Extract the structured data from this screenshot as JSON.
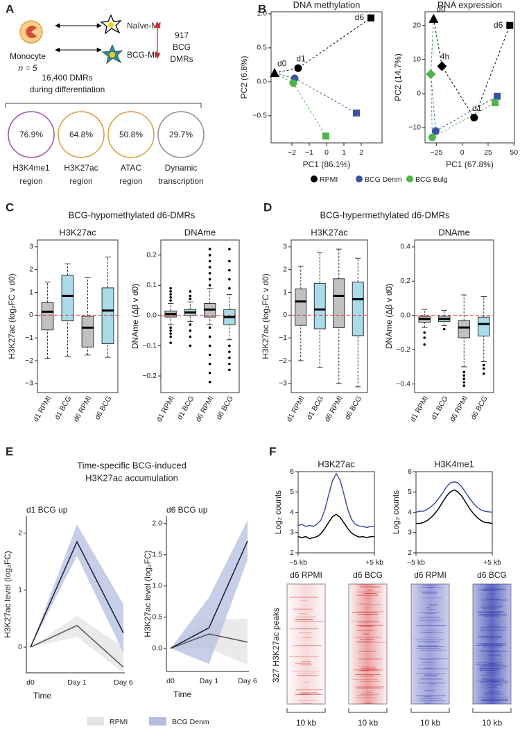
{
  "panel_labels": [
    "A",
    "B",
    "C",
    "D",
    "E",
    "F"
  ],
  "panel_a": {
    "monocyte": "Monocyte",
    "n": "n = 5",
    "naive": "Naïve-Mf",
    "bcg": "BCG-Mf",
    "bcg_dmrs": [
      "917",
      "BCG",
      "DMRs"
    ],
    "diff_dmrs": [
      "16,400 DMRs",
      "during differentiation"
    ],
    "overlaps": [
      {
        "value": "76.9%",
        "label": [
          "H3K4me1",
          "region"
        ],
        "color": "#a04fb0"
      },
      {
        "value": "64.8%",
        "label": [
          "H3K27ac",
          "region"
        ],
        "color": "#e09a3a"
      },
      {
        "value": "50.8%",
        "label": [
          "ATAC",
          "region"
        ],
        "color": "#e09a3a"
      },
      {
        "value": "29.7%",
        "label": [
          "Dynamic",
          "transcription"
        ],
        "color": "#8c8c8c"
      }
    ]
  },
  "panel_c": {
    "title": "BCG-hypomethylated d6-DMRs"
  },
  "panel_d": {
    "title": "BCG-hypermethylated d6-DMRs"
  },
  "panel_e": {
    "title": [
      "Time-specific BCG-induced",
      "H3K27ac accumulation"
    ]
  },
  "panel_f": {
    "heatmap_labels": [
      "d6 RPMI",
      "d6 BCG"
    ],
    "scale": "10 kb",
    "row_label": "327 H3K27ac peaks"
  },
  "chart_data": [
    {
      "type": "scatter",
      "title": "DNA methylation",
      "xlabel": "PC1 (86.1%)",
      "ylabel": "PC2 (6.8%)",
      "xlim": [
        -3.2,
        3.2
      ],
      "ylim": [
        -0.9,
        1.03
      ],
      "xticks": [
        {
          "value": -2,
          "label": "−2"
        },
        {
          "value": -1,
          "label": "−1"
        },
        0,
        1,
        2
      ],
      "yticks": [
        {
          "value": -0.5,
          "label": "−0.5"
        },
        {
          "value": 0,
          "label": "0.0"
        },
        {
          "value": 0.5,
          "label": "0.5"
        },
        {
          "value": 1,
          "label": "1.0"
        }
      ],
      "markers": [
        "circle",
        "square"
      ],
      "start": {
        "label": "d0",
        "x": -3.0,
        "y": 0.13,
        "color": "#000000"
      },
      "series": [
        {
          "name": "RPMI",
          "color": "#000000",
          "x": [
            -1.64,
            2.56
          ],
          "values": [
            0.2,
            0.94
          ],
          "point_labels": [
            "d1",
            "d6"
          ]
        },
        {
          "name": "BCG Denm",
          "color": "#3a55a4",
          "x": [
            -1.84,
            1.72
          ],
          "values": [
            0.05,
            -0.46
          ]
        },
        {
          "name": "BCG Bulg",
          "color": "#4cb648",
          "x": [
            -1.92,
            -0.04
          ],
          "values": [
            -0.02,
            -0.8
          ]
        }
      ]
    },
    {
      "type": "scatter",
      "title": "RNA expression",
      "xlabel": "PC1 (67.8%)",
      "ylabel": "PC2 (14.7%)",
      "xlim": [
        -36,
        50.5
      ],
      "ylim": [
        -14.5,
        24
      ],
      "xticks": [
        {
          "value": -25,
          "label": "−25"
        },
        0,
        25,
        50
      ],
      "yticks": [
        {
          "value": -10,
          "label": "−10"
        },
        0,
        10,
        20
      ],
      "markers": [
        "diamond",
        "circle",
        "square"
      ],
      "start": {
        "label": "d0",
        "x": -27.7,
        "y": 22,
        "color": "#000000"
      },
      "series": [
        {
          "name": "RPMI",
          "color": "#000000",
          "x": [
            -19.6,
            11.5,
            46
          ],
          "values": [
            8,
            -7.1,
            20
          ],
          "point_labels": [
            "4h",
            "d1",
            "d6"
          ]
        },
        {
          "name": "BCG Denm",
          "color": "#3a55a4",
          "x": [
            -30.4,
            -25.7,
            33.8
          ],
          "values": [
            5.7,
            -11,
            -0.8
          ]
        },
        {
          "name": "BCG Bulg",
          "color": "#4cb648",
          "x": [
            -30.4,
            -29,
            31.8
          ],
          "values": [
            5.7,
            -12.9,
            -2.7
          ]
        }
      ]
    },
    {
      "type": "box",
      "title": "H3K27ac",
      "ylabel": "H3K27ac (log₂FC v d0)",
      "ylim": [
        -3.4,
        3.3
      ],
      "hline": 0,
      "yticks": [
        {
          "value": -3,
          "label": "−3"
        },
        {
          "value": -2,
          "label": "−2"
        },
        {
          "value": -1,
          "label": "−1"
        },
        0,
        1,
        2,
        3
      ],
      "categories": [
        "d1 RPMI",
        "d1 BCG",
        "d6 RPMI",
        "d6 BCG"
      ],
      "colors": [
        "#c0c0c0",
        "#a9dbe9",
        "#c0c0c0",
        "#a9dbe9"
      ],
      "boxes": [
        {
          "whisker_low": -1.9,
          "q1": -0.65,
          "median": 0.15,
          "q3": 0.55,
          "whisker_high": 1.45,
          "outliers": []
        },
        {
          "whisker_low": -1.8,
          "q1": -0.25,
          "median": 0.85,
          "q3": 1.75,
          "whisker_high": 2.25,
          "outliers": []
        },
        {
          "whisker_low": -1.75,
          "q1": -1.4,
          "median": -0.55,
          "q3": -0.05,
          "whisker_high": 1.65,
          "outliers": []
        },
        {
          "whisker_low": -1.85,
          "q1": -1.25,
          "median": 0.2,
          "q3": 1.2,
          "whisker_high": 2.55,
          "outliers": []
        }
      ]
    },
    {
      "type": "box",
      "title": "DNAme",
      "ylabel": "DNAme (Δβ v d0)",
      "ylim": [
        -0.255,
        0.25
      ],
      "hline": 0,
      "yticks": [
        {
          "value": -0.2,
          "label": "−0.2"
        },
        {
          "value": -0.1,
          "label": "−0.1"
        },
        {
          "value": 0,
          "label": "0.0"
        },
        0.1,
        0.2
      ],
      "categories": [
        "d1 RPMI",
        "d1 BCG",
        "d6 RPMI",
        "d6 BCG"
      ],
      "colors": [
        "#c0c0c0",
        "#a9dbe9",
        "#c0c0c0",
        "#a9dbe9"
      ],
      "boxes": [
        {
          "whisker_low": -0.03,
          "q1": -0.005,
          "median": 0.005,
          "q3": 0.015,
          "whisker_high": 0.04,
          "outliers": [
            0.05,
            0.06,
            0.07,
            0.08,
            0.09,
            -0.04,
            -0.05,
            -0.06,
            -0.07,
            -0.09
          ]
        },
        {
          "whisker_low": -0.02,
          "q1": 0.0,
          "median": 0.01,
          "q3": 0.02,
          "whisker_high": 0.045,
          "outliers": [
            0.055,
            0.065,
            0.08,
            -0.03,
            -0.05,
            -0.07,
            -0.1
          ]
        },
        {
          "whisker_low": -0.03,
          "q1": -0.005,
          "median": 0.02,
          "q3": 0.04,
          "whisker_high": 0.09,
          "outliers": [
            0.1,
            0.12,
            0.14,
            0.16,
            0.18,
            0.2,
            0.22,
            -0.04,
            -0.07,
            -0.1,
            -0.13,
            -0.16,
            -0.19,
            -0.22
          ]
        },
        {
          "whisker_low": -0.08,
          "q1": -0.03,
          "median": -0.005,
          "q3": 0.02,
          "whisker_high": 0.07,
          "outliers": [
            0.09,
            0.12,
            0.15,
            0.18,
            0.22,
            -0.1,
            -0.12,
            -0.14,
            -0.16,
            -0.18
          ]
        }
      ]
    },
    {
      "type": "box",
      "title": "H3K27ac",
      "ylabel": "H3K27ac (log₂FC v d0)",
      "ylim": [
        -3.4,
        3.3
      ],
      "hline": 0,
      "yticks": [
        {
          "value": -3,
          "label": "−3"
        },
        {
          "value": -2,
          "label": "−2"
        },
        {
          "value": -1,
          "label": "−1"
        },
        0,
        1,
        2,
        3
      ],
      "categories": [
        "d1 RPMI",
        "d1 BCG",
        "d6 RPMI",
        "d6 BCG"
      ],
      "colors": [
        "#c0c0c0",
        "#a9dbe9",
        "#c0c0c0",
        "#a9dbe9"
      ],
      "boxes": [
        {
          "whisker_low": -2.0,
          "q1": -0.45,
          "median": 0.6,
          "q3": 1.15,
          "whisker_high": 2.15,
          "outliers": []
        },
        {
          "whisker_low": -2.3,
          "q1": -0.6,
          "median": 0.25,
          "q3": 1.4,
          "whisker_high": 2.75,
          "outliers": []
        },
        {
          "whisker_low": -3.0,
          "q1": -0.55,
          "median": 0.85,
          "q3": 1.6,
          "whisker_high": 2.9,
          "outliers": []
        },
        {
          "whisker_low": -3.15,
          "q1": -0.9,
          "median": 0.7,
          "q3": 1.45,
          "whisker_high": 2.5,
          "outliers": []
        }
      ]
    },
    {
      "type": "box",
      "title": "DNAme",
      "ylabel": "DNAme (Δβ v d0)",
      "ylim": [
        -0.45,
        0.44
      ],
      "hline": 0,
      "yticks": [
        {
          "value": -0.4,
          "label": "−0.4"
        },
        {
          "value": -0.2,
          "label": "−0.2"
        },
        {
          "value": 0,
          "label": "0.0"
        },
        0.2,
        0.4
      ],
      "categories": [
        "d1 RPMI",
        "d1 BCG",
        "d6 RPMI",
        "d6 BCG"
      ],
      "colors": [
        "#c0c0c0",
        "#a9dbe9",
        "#c0c0c0",
        "#a9dbe9"
      ],
      "boxes": [
        {
          "whisker_low": -0.07,
          "q1": -0.04,
          "median": -0.02,
          "q3": -0.005,
          "whisker_high": 0.035,
          "outliers": [
            -0.1,
            -0.13,
            -0.17
          ]
        },
        {
          "whisker_low": -0.06,
          "q1": -0.035,
          "median": -0.02,
          "q3": -0.005,
          "whisker_high": 0.03,
          "outliers": [
            -0.08
          ]
        },
        {
          "whisker_low": -0.3,
          "q1": -0.13,
          "median": -0.07,
          "q3": -0.03,
          "whisker_high": 0.12,
          "outliers": [
            -0.33,
            -0.35,
            -0.37,
            -0.39,
            -0.41
          ]
        },
        {
          "whisker_low": -0.27,
          "q1": -0.12,
          "median": -0.05,
          "q3": -0.01,
          "whisker_high": 0.11,
          "outliers": [
            -0.29,
            -0.31,
            -0.34
          ]
        }
      ]
    },
    {
      "type": "line",
      "title": "d1 BCG up",
      "ylabel": "H3K27ac level (log₂FC)",
      "xlabel": "Time",
      "frame": false,
      "ylim": [
        -0.45,
        2.3
      ],
      "yticks": [
        0,
        1,
        2
      ],
      "categories": [
        "d0",
        "Day 1",
        "Day 6"
      ],
      "series": [
        {
          "name": "RPMI",
          "color": "#555555",
          "band_color": "#e3e3e3",
          "values": [
            0,
            0.38,
            -0.35
          ],
          "lower": [
            0,
            0.18,
            -0.45
          ],
          "upper": [
            0,
            0.55,
            0.0
          ]
        },
        {
          "name": "BCG Denm",
          "color": "#1a1a2e",
          "band_color": "#b4bde0",
          "values": [
            0,
            1.85,
            0.25
          ],
          "lower": [
            0,
            1.6,
            -0.1
          ],
          "upper": [
            0,
            2.15,
            0.75
          ]
        }
      ]
    },
    {
      "type": "line",
      "title": "d6 BCG up",
      "ylabel": "H3K27ac level (log₂FC)",
      "xlabel": "Time",
      "frame": false,
      "ylim": [
        -0.37,
        2.12
      ],
      "yticks": [
        {
          "value": 0,
          "label": "0.0"
        },
        {
          "value": 0.5,
          "label": "0.5"
        },
        {
          "value": 1,
          "label": "1.0"
        },
        {
          "value": 1.5,
          "label": "1.5"
        },
        {
          "value": 2,
          "label": "2.0"
        }
      ],
      "categories": [
        "d0",
        "Day 1",
        "Day 6"
      ],
      "series": [
        {
          "name": "RPMI",
          "color": "#555555",
          "band_color": "#e3e3e3",
          "values": [
            0,
            0.23,
            0.1
          ],
          "lower": [
            0,
            0.0,
            -0.27
          ],
          "upper": [
            0,
            0.45,
            0.48
          ]
        },
        {
          "name": "BCG Denm",
          "color": "#1a1a2e",
          "band_color": "#b4bde0",
          "values": [
            0,
            0.33,
            1.72
          ],
          "lower": [
            0,
            -0.25,
            1.42
          ],
          "upper": [
            0,
            0.82,
            2.05
          ]
        }
      ]
    },
    {
      "type": "line",
      "title": "H3K27ac",
      "ylabel": "Log₂ counts",
      "frame": true,
      "xlim": [
        -5,
        5
      ],
      "ylim": [
        2,
        6
      ],
      "yticks": [
        2,
        3,
        4,
        5,
        6
      ],
      "xticks": [
        {
          "value": -5,
          "label": "−5 kb"
        },
        {
          "value": 5,
          "label": "+5 kb"
        }
      ],
      "x": [
        -5,
        -4.5,
        -4,
        -3.5,
        -3,
        -2.5,
        -2,
        -1.5,
        -1,
        -0.5,
        0,
        0.5,
        1,
        1.5,
        2,
        2.5,
        3,
        3.5,
        4,
        4.5,
        5
      ],
      "series": [
        {
          "color": "#3a4fb0",
          "values": [
            3.35,
            3.4,
            3.3,
            3.35,
            3.3,
            3.42,
            3.62,
            4.12,
            4.85,
            5.55,
            5.9,
            5.58,
            4.9,
            4.15,
            3.65,
            3.4,
            3.32,
            3.3,
            3.25,
            3.3,
            3.3
          ]
        },
        {
          "color": "#000000",
          "values": [
            2.8,
            2.75,
            2.8,
            2.7,
            2.75,
            2.8,
            2.95,
            3.2,
            3.5,
            3.78,
            3.9,
            3.75,
            3.48,
            3.2,
            2.98,
            2.85,
            2.78,
            2.8,
            2.75,
            2.8,
            2.8
          ]
        }
      ]
    },
    {
      "type": "line",
      "title": "H3K4me1",
      "ylabel": "Log₂ counts",
      "frame": true,
      "xlim": [
        -5,
        5
      ],
      "ylim": [
        2,
        6
      ],
      "yticks": [
        2,
        3,
        4,
        5,
        6
      ],
      "xticks": [
        {
          "value": -5,
          "label": "−5 kb"
        },
        {
          "value": 5,
          "label": "+5 kb"
        }
      ],
      "x": [
        -5,
        -4.5,
        -4,
        -3.5,
        -3,
        -2.5,
        -2,
        -1.5,
        -1,
        -0.5,
        0,
        0.5,
        1,
        1.5,
        2,
        2.5,
        3,
        3.5,
        4,
        4.5,
        5
      ],
      "series": [
        {
          "color": "#3a4fb0",
          "values": [
            4.0,
            4.05,
            4.05,
            4.15,
            4.28,
            4.45,
            4.7,
            4.95,
            5.25,
            5.45,
            5.5,
            5.45,
            5.25,
            4.98,
            4.7,
            4.45,
            4.25,
            4.12,
            4.05,
            4.02,
            4.0
          ]
        },
        {
          "color": "#000000",
          "values": [
            3.45,
            3.45,
            3.5,
            3.6,
            3.75,
            3.95,
            4.2,
            4.5,
            4.8,
            5.0,
            5.1,
            5.0,
            4.8,
            4.5,
            4.2,
            3.95,
            3.75,
            3.6,
            3.5,
            3.48,
            3.45
          ]
        }
      ]
    }
  ]
}
